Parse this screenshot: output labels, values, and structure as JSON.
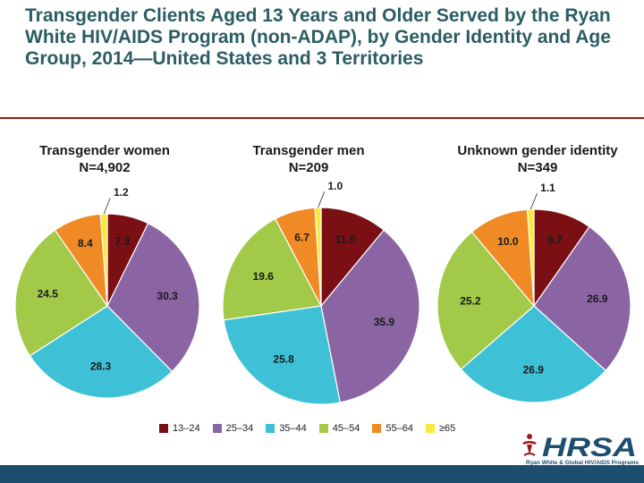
{
  "title": "Transgender Clients Aged 13 Years and Older Served by the Ryan White HIV/AIDS Program (non-ADAP), by Gender Identity and Age Group, 2014—United States and 3 Territories",
  "logo": {
    "name": "HRSA",
    "tagline": "Ryan White & Global HIV/AIDS Programs"
  },
  "colors": {
    "13–24": "#7a0f14",
    "25–34": "#8b65a3",
    "35–44": "#3ec1d6",
    "45–54": "#a3c948",
    "55–64": "#f08a24",
    "≥65": "#fce93b"
  },
  "chart_data": [
    {
      "type": "pie",
      "title": "Transgender women",
      "subtitle": "N=4,902",
      "categories": [
        "13–24",
        "25–34",
        "35–44",
        "45–54",
        "55–64",
        "≥65"
      ],
      "values": [
        7.3,
        30.3,
        28.3,
        24.5,
        8.4,
        1.2
      ],
      "labels": [
        "7.3",
        "30.3",
        "28.3",
        "24.5",
        "8.4",
        "1.2"
      ],
      "legend": "bottom"
    },
    {
      "type": "pie",
      "title": "Transgender men",
      "subtitle": "N=209",
      "categories": [
        "13–24",
        "25–34",
        "35–44",
        "45–54",
        "55–64",
        "≥65"
      ],
      "values": [
        11.0,
        35.9,
        25.8,
        19.6,
        6.7,
        1.0
      ],
      "labels": [
        "11.0",
        "35.9",
        "25.8",
        "19.6",
        "6.7",
        "1.0"
      ],
      "legend": "bottom"
    },
    {
      "type": "pie",
      "title": "Unknown gender identity",
      "subtitle": "N=349",
      "categories": [
        "13–24",
        "25–34",
        "35–44",
        "45–54",
        "55–64",
        "≥65"
      ],
      "values": [
        9.7,
        26.9,
        26.9,
        25.2,
        10.0,
        1.1
      ],
      "labels": [
        "9.7",
        "26.9",
        "26.9",
        "25.2",
        "10.0",
        "1.1"
      ],
      "legend": "bottom"
    }
  ]
}
